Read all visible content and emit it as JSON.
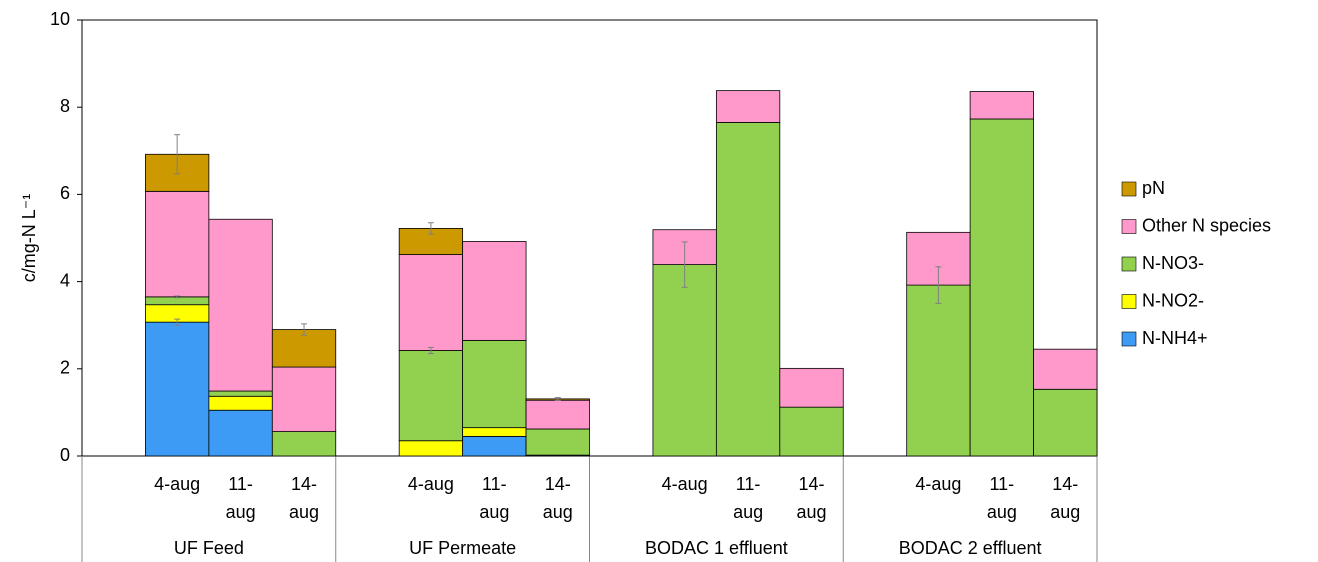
{
  "chart_data": {
    "type": "bar",
    "stacked": true,
    "ylabel": "c/mg-N L⁻¹",
    "categories": [
      "4-aug",
      "11-aug",
      "14-aug",
      "4-aug",
      "11-aug",
      "14-aug",
      "4-aug",
      "11-aug",
      "14-aug",
      "4-aug",
      "11-aug",
      "14-aug"
    ],
    "groups": [
      "UF Feed",
      "UF Permeate",
      "BODAC 1 effluent",
      "BODAC 2 effluent"
    ],
    "series": [
      {
        "name": "N-NH4+",
        "color": "#3d9bf5",
        "values": [
          3.07,
          1.05,
          0,
          0,
          0.45,
          0.02,
          0,
          0,
          0,
          0,
          0,
          0
        ],
        "errors": [
          0.07,
          null,
          null,
          null,
          null,
          null,
          null,
          null,
          null,
          null,
          null,
          null
        ]
      },
      {
        "name": "N-NO2-",
        "color": "#ffff00",
        "values": [
          0.4,
          0.32,
          0,
          0.35,
          0.2,
          0,
          0,
          0,
          0,
          0,
          0,
          0
        ],
        "errors": [
          null,
          null,
          null,
          null,
          null,
          null,
          null,
          null,
          null,
          null,
          null,
          null
        ]
      },
      {
        "name": "N-NO3-",
        "color": "#92d050",
        "values": [
          0.18,
          0.12,
          0.56,
          2.07,
          2.0,
          0.6,
          4.39,
          7.65,
          1.12,
          3.92,
          7.73,
          1.53
        ],
        "errors": [
          0.02,
          null,
          null,
          0.07,
          null,
          null,
          0.52,
          null,
          null,
          0.42,
          null,
          null
        ]
      },
      {
        "name": "Other N species",
        "color": "#ff99cc",
        "values": [
          2.42,
          3.94,
          1.48,
          2.2,
          2.27,
          0.66,
          0.8,
          0.73,
          0.89,
          1.21,
          0.63,
          0.92
        ],
        "errors": [
          null,
          null,
          null,
          null,
          null,
          null,
          null,
          null,
          null,
          null,
          null,
          null
        ]
      },
      {
        "name": "pN",
        "color": "#cc9900",
        "values": [
          0.85,
          0,
          0.86,
          0.6,
          0,
          0.03,
          0,
          0,
          0,
          0,
          0,
          0
        ],
        "errors": [
          0.45,
          null,
          0.13,
          0.13,
          null,
          0.03,
          null,
          null,
          null,
          null,
          null,
          null
        ]
      }
    ],
    "ylim": [
      0,
      10
    ],
    "yticks": [
      0,
      2,
      4,
      6,
      8,
      10
    ],
    "grid": false,
    "legend": "right"
  }
}
